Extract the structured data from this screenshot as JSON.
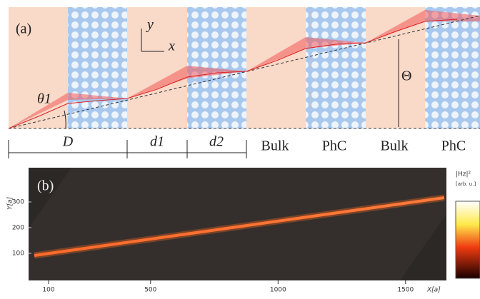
{
  "panel_a": {
    "label": "(a)",
    "axis_y": "y",
    "axis_x": "x",
    "angle_small": "θ1",
    "angle_big": "Θ",
    "segments": [
      "D",
      "d1",
      "d2",
      "Bulk",
      "PhC",
      "Bulk",
      "PhC"
    ]
  },
  "panel_b": {
    "label": "(b)",
    "y_label": "Y[a]",
    "x_label": "X[a]",
    "yticks": [
      100,
      200,
      300
    ],
    "xticks": [
      100,
      500,
      1000,
      1500
    ],
    "colorbar_label": "|Hz|²",
    "colorbar_unit": "[arb. u.]"
  }
}
